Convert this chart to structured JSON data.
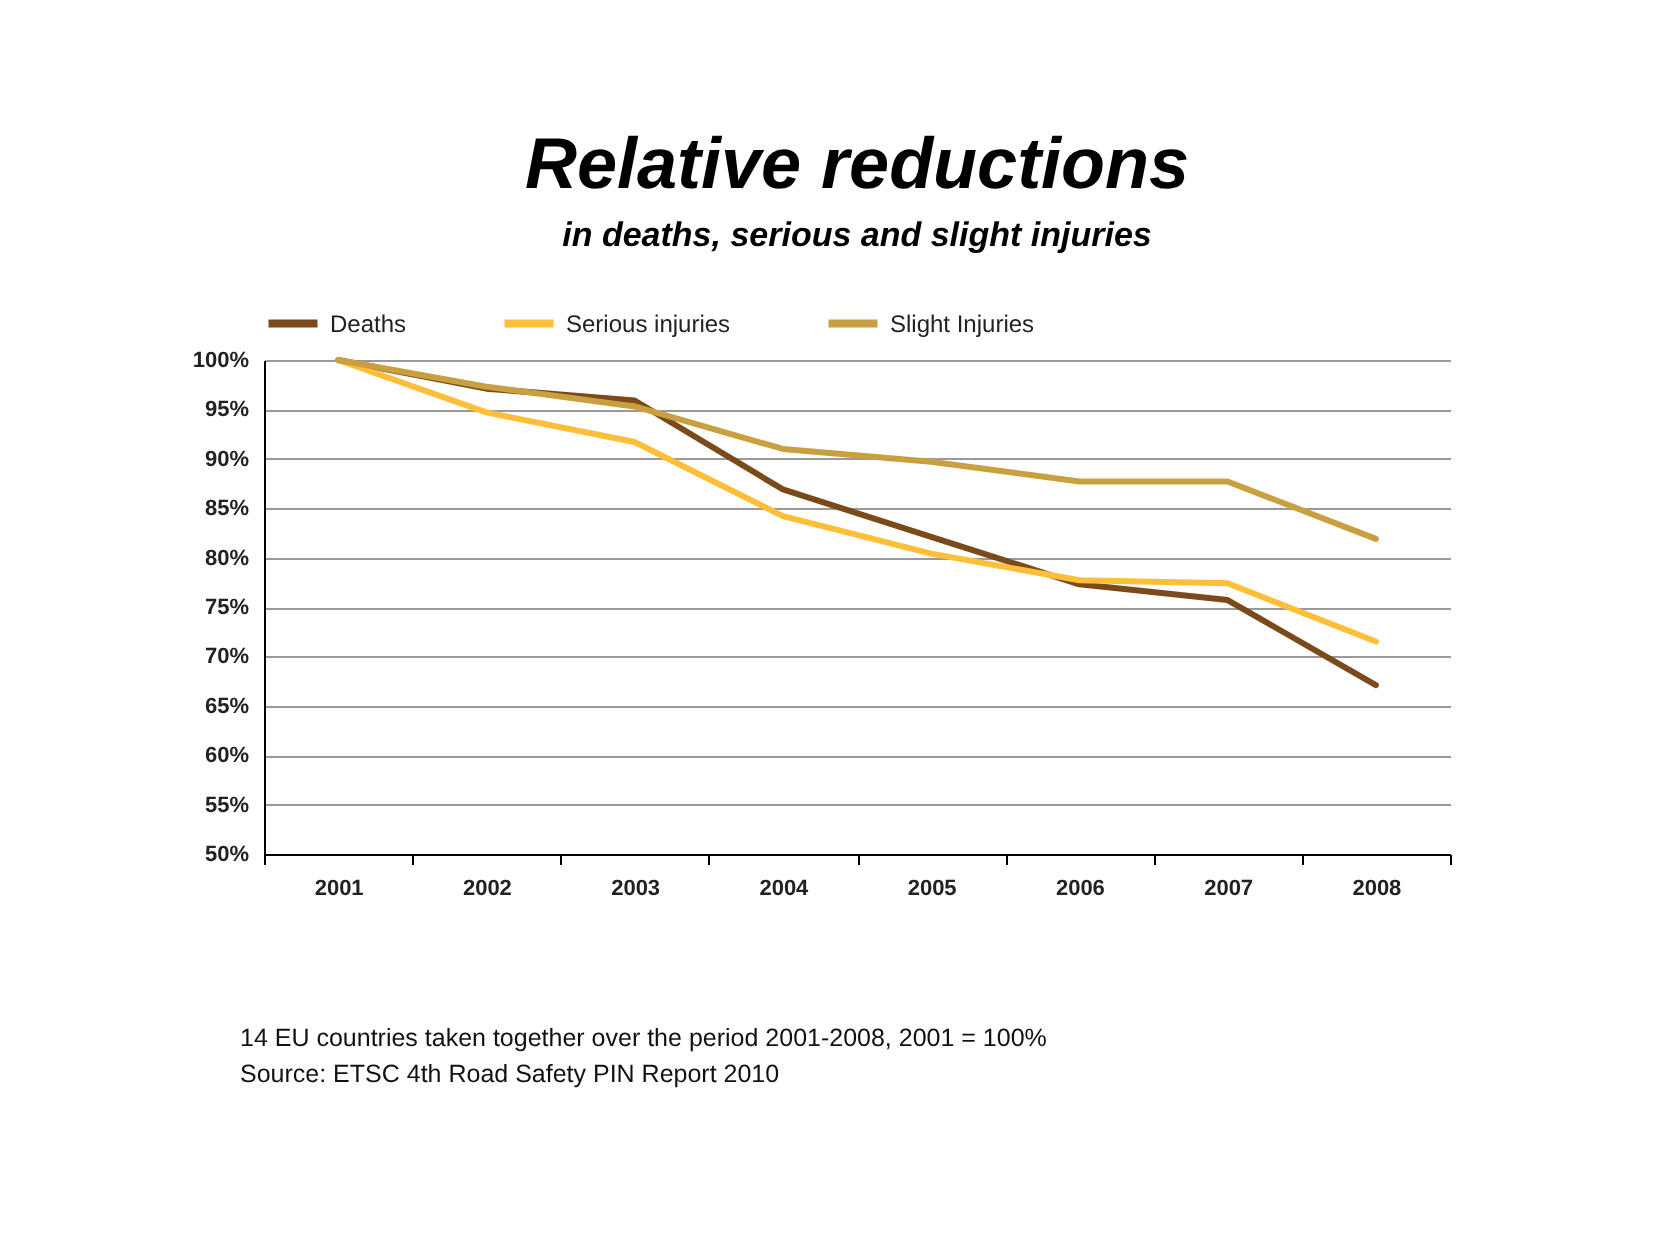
{
  "chart_data": {
    "type": "line",
    "title": "Relative reductions",
    "subtitle": "in deaths, serious and slight injuries",
    "categories": [
      "2001",
      "2002",
      "2003",
      "2004",
      "2005",
      "2006",
      "2007",
      "2008"
    ],
    "series": [
      {
        "name": "Deaths",
        "color": "#7a4a1a",
        "values": [
          100,
          97.1,
          95.9,
          86.9,
          82.1,
          77.3,
          75.7,
          67.1
        ]
      },
      {
        "name": "Serious injuries",
        "color": "#fdbf3a",
        "values": [
          100,
          94.7,
          91.7,
          84.2,
          80.4,
          77.7,
          77.4,
          71.5
        ]
      },
      {
        "name": "Slight Injuries",
        "color": "#c8a040",
        "values": [
          100,
          97.3,
          95.3,
          91,
          89.7,
          87.7,
          87.7,
          81.9
        ]
      }
    ],
    "ylim": [
      50,
      100
    ],
    "yticks": [
      {
        "value": 50,
        "label": "50%"
      },
      {
        "value": 55,
        "label": "55%"
      },
      {
        "value": 60,
        "label": "60%"
      },
      {
        "value": 65,
        "label": "65%"
      },
      {
        "value": 70,
        "label": "70%"
      },
      {
        "value": 75,
        "label": "75%"
      },
      {
        "value": 80,
        "label": "80%"
      },
      {
        "value": 85,
        "label": "85%"
      },
      {
        "value": 90,
        "label": "90%"
      },
      {
        "value": 95,
        "label": "95%"
      },
      {
        "value": 100,
        "label": "100%"
      }
    ],
    "grid": "y",
    "legend": "top",
    "marker": "none",
    "line_style": "solid",
    "annotations": [
      "14 EU countries taken together over the period 2001-2008, 2001 = 100%",
      "Source: ETSC 4th Road Safety PIN Report 2010"
    ]
  }
}
